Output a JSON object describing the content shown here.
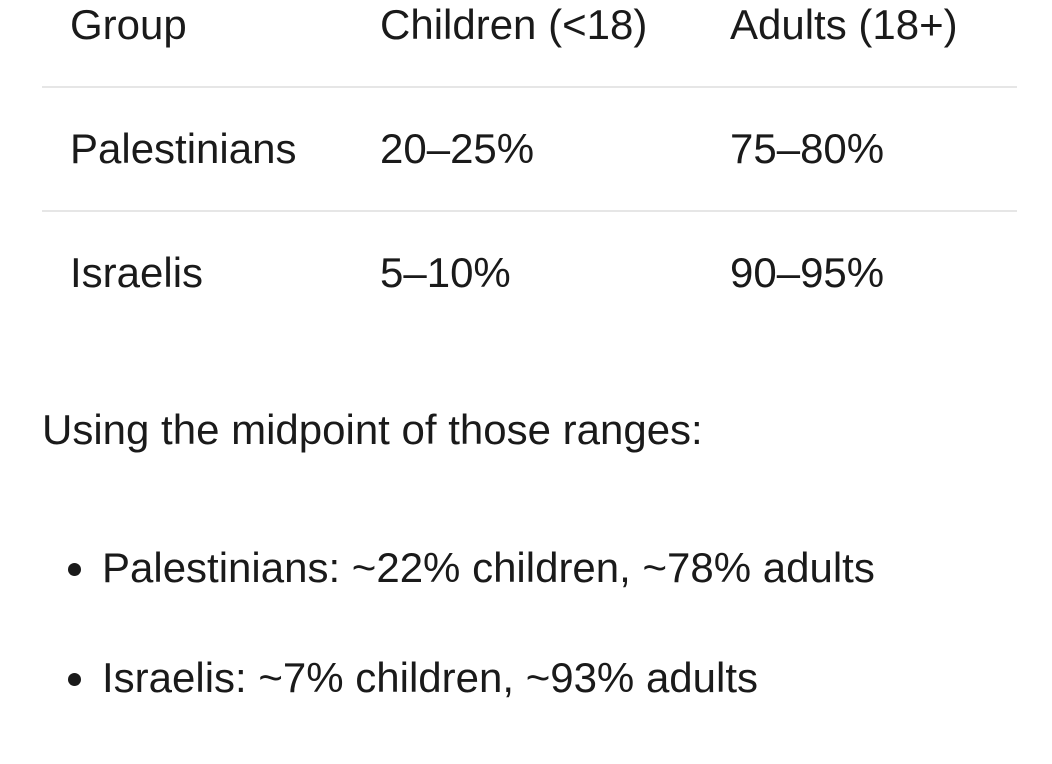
{
  "table": {
    "header": [
      "Group",
      "Children (<18)",
      "Adults (18+)"
    ],
    "rows": [
      [
        "Palestinians",
        "20–25%",
        "75–80%"
      ],
      [
        "Israelis",
        "5–10%",
        "90–95%"
      ]
    ]
  },
  "paragraph": "Using the midpoint of those ranges:",
  "bullets": [
    "Palestinians: ~22% children, ~78% adults",
    "Israelis: ~7% children, ~93% adults"
  ]
}
